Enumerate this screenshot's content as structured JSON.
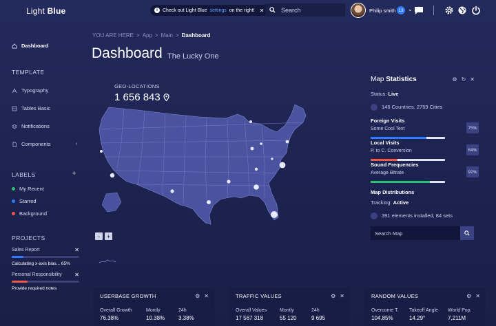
{
  "app": {
    "logo_light": "Light ",
    "logo_bold": "Blue"
  },
  "topbar": {
    "notice_prefix": "Check out Light Blue ",
    "notice_link": "settings",
    "notice_suffix": " on the right!",
    "notice_close": "✕",
    "search_placeholder": "Search",
    "user_name": "Philip smith",
    "notification_count": "13",
    "caret": "⌄"
  },
  "sidebar": {
    "dashboard": "Dashboard",
    "template_title": "TEMPLATE",
    "template_items": [
      "Typography",
      "Tables Basic",
      "Notifications",
      "Components"
    ],
    "components_chevron": "‹",
    "labels_title": "LABELS",
    "labels_add": "+",
    "labels": [
      {
        "label": "My Recent",
        "color": "#2fbf71"
      },
      {
        "label": "Starred",
        "color": "#2e7bff"
      },
      {
        "label": "Background",
        "color": "#f0584a"
      }
    ],
    "projects_title": "PROJECTS",
    "projects": [
      {
        "title": "Sales Report",
        "desc": "Calculating x-axis bias... 65%",
        "progress": 0.17,
        "color": "#2e7bff",
        "close": "✕"
      },
      {
        "title": "Personal Responsibility",
        "desc": "Provide required notes",
        "progress": 0.23,
        "color": "#f0584a",
        "close": "✕"
      }
    ]
  },
  "breadcrumb": {
    "prefix": "YOU ARE HERE",
    "sep": ">",
    "items": [
      "App",
      "Main"
    ],
    "current": "Dashboard"
  },
  "page": {
    "title": "Dashboard",
    "subtitle": "The Lucky One"
  },
  "geo": {
    "label": "GEO-LOCATIONS",
    "value": "1 656 843"
  },
  "map_zoom": {
    "minus": "-",
    "plus": "+"
  },
  "stats": {
    "title_light": "Map ",
    "title_bold": "Statistics",
    "status_label": "Status: ",
    "status_value": "Live",
    "coverage": "146 Countries, 2759 Cities",
    "metrics": [
      {
        "title": "Foreign Visits",
        "sub": "Some Cool Text",
        "pct": "75%",
        "value": 0.75,
        "color": "#2e7bff"
      },
      {
        "title": "Local Visits",
        "sub": "P. to C. Conversion",
        "pct": "84%",
        "value": 0.84,
        "color": "#f0584a"
      },
      {
        "title": "Sound Frequencies",
        "sub": "Average Bitrate",
        "pct": "92%",
        "value": 0.92,
        "color": "#2fbf71"
      }
    ],
    "distributions_title": "Map Distributions",
    "tracking_label": "Tracking: ",
    "tracking_value": "Active",
    "installed": "391 elements installed, 84 sets",
    "search_placeholder": "Search Map"
  },
  "widgets": [
    {
      "title": "USERBASE GROWTH",
      "cols": [
        {
          "label": "Overall Growth",
          "value": "76.38%"
        },
        {
          "label": "Montly",
          "value": "10.38%"
        },
        {
          "label": "24h",
          "value": "3.38%"
        }
      ]
    },
    {
      "title": "TRAFFIC VALUES",
      "cols": [
        {
          "label": "Overall Values",
          "value": "17 567 318"
        },
        {
          "label": "Montly",
          "value": "55 120"
        },
        {
          "label": "24h",
          "value": "9 695"
        }
      ]
    },
    {
      "title": "RANDOM VALUES",
      "cols": [
        {
          "label": "Overcome T.",
          "value": "104.85%"
        },
        {
          "label": "Takeoff Angle",
          "value": "14.29°"
        },
        {
          "label": "World Pop.",
          "value": "7,211M"
        }
      ]
    }
  ],
  "widget_tools": {
    "gear": "⚙",
    "close": "✕"
  }
}
